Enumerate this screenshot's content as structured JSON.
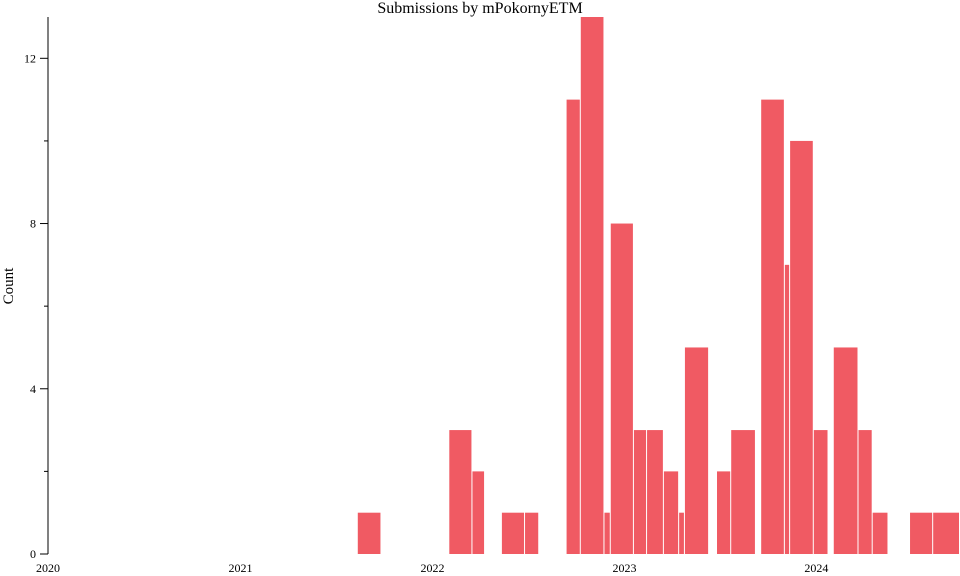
{
  "chart_data": {
    "type": "bar",
    "title": "Submissions by mPokornyETM",
    "xlabel": "",
    "ylabel": "Count",
    "xlim": [
      "2020-01-01",
      "2024-09-30"
    ],
    "ylim": [
      0,
      13
    ],
    "x_ticks": [
      "2020",
      "2021",
      "2022",
      "2023",
      "2024"
    ],
    "y_ticks": [
      0,
      4,
      8,
      12
    ],
    "grid": false,
    "bars": [
      {
        "start": "2021-08-12",
        "end": "2021-09-26",
        "value": 1
      },
      {
        "start": "2022-02-02",
        "end": "2022-03-18",
        "value": 3
      },
      {
        "start": "2022-03-18",
        "end": "2022-04-11",
        "value": 2
      },
      {
        "start": "2022-05-13",
        "end": "2022-06-26",
        "value": 1
      },
      {
        "start": "2022-06-26",
        "end": "2022-07-23",
        "value": 1
      },
      {
        "start": "2022-09-13",
        "end": "2022-10-10",
        "value": 11
      },
      {
        "start": "2022-10-10",
        "end": "2022-11-24",
        "value": 13
      },
      {
        "start": "2022-11-24",
        "end": "2022-12-06",
        "value": 1
      },
      {
        "start": "2022-12-06",
        "end": "2023-01-19",
        "value": 8
      },
      {
        "start": "2023-01-19",
        "end": "2023-02-13",
        "value": 3
      },
      {
        "start": "2023-02-13",
        "end": "2023-03-17",
        "value": 3
      },
      {
        "start": "2023-03-17",
        "end": "2023-04-15",
        "value": 2
      },
      {
        "start": "2023-04-15",
        "end": "2023-04-26",
        "value": 1
      },
      {
        "start": "2023-04-26",
        "end": "2023-06-11",
        "value": 5
      },
      {
        "start": "2023-06-26",
        "end": "2023-07-23",
        "value": 2
      },
      {
        "start": "2023-07-23",
        "end": "2023-09-08",
        "value": 3
      },
      {
        "start": "2023-09-18",
        "end": "2023-11-02",
        "value": 11
      },
      {
        "start": "2023-11-02",
        "end": "2023-11-12",
        "value": 7
      },
      {
        "start": "2023-11-12",
        "end": "2023-12-27",
        "value": 10
      },
      {
        "start": "2023-12-27",
        "end": "2024-01-24",
        "value": 3
      },
      {
        "start": "2024-02-03",
        "end": "2024-03-21",
        "value": 5
      },
      {
        "start": "2024-03-21",
        "end": "2024-04-17",
        "value": 3
      },
      {
        "start": "2024-04-17",
        "end": "2024-05-17",
        "value": 1
      },
      {
        "start": "2024-06-27",
        "end": "2024-08-10",
        "value": 1
      },
      {
        "start": "2024-08-10",
        "end": "2024-09-30",
        "value": 1
      }
    ],
    "bar_color": "#f05a63"
  }
}
